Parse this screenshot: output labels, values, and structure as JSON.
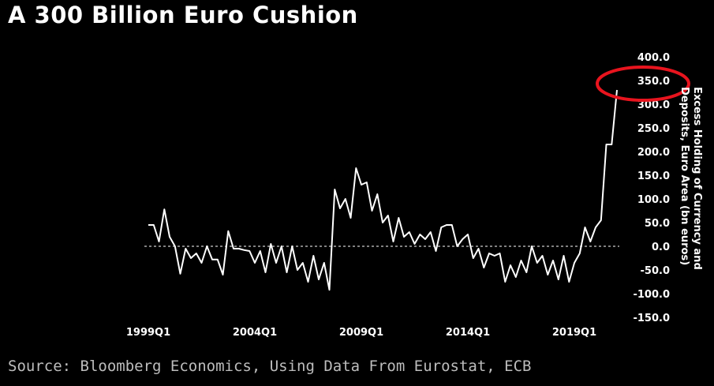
{
  "title": "A 300 Billion Euro Cushion",
  "source": "Source: Bloomberg Economics, Using Data From Eurostat, ECB",
  "colors": {
    "background": "#000000",
    "line": "#ffffff",
    "highlight": "#e8141e",
    "zero_line": "#ffffff"
  },
  "chart_data": {
    "type": "line",
    "title": "A 300 Billion Euro Cushion",
    "ylabel_lines": [
      "Excess Holding of Currency and",
      "Deposits, Euro Area (bn euros)"
    ],
    "ylim": [
      -150,
      400
    ],
    "yticks": [
      400.0,
      350.0,
      300.0,
      250.0,
      200.0,
      150.0,
      100.0,
      50.0,
      0.0,
      -50.0,
      -100.0,
      -150.0
    ],
    "ytick_labels": [
      "400.0",
      "350.0",
      "300.0",
      "250.0",
      "200.0",
      "150.0",
      "100.0",
      "50.0",
      "0.0",
      "-50.0",
      "-100.0",
      "-150.0"
    ],
    "xticks": [
      "1999Q1",
      "2004Q1",
      "2009Q1",
      "2014Q1",
      "2019Q1"
    ],
    "x_start": "1999Q1",
    "annotation": {
      "type": "circle",
      "around_tick": "350.0",
      "color": "#e8141e"
    },
    "series": [
      {
        "values": [
          45,
          45,
          10,
          78,
          20,
          0,
          -58,
          -5,
          -25,
          -15,
          -35,
          0,
          -28,
          -28,
          -60,
          32,
          -5,
          -5,
          -8,
          -10,
          -35,
          -10,
          -55,
          5,
          -35,
          0,
          -55,
          0,
          -50,
          -35,
          -75,
          -20,
          -70,
          -35,
          -92,
          120,
          80,
          100,
          60,
          165,
          130,
          135,
          75,
          110,
          50,
          65,
          10,
          60,
          20,
          30,
          5,
          25,
          15,
          30,
          -10,
          40,
          45,
          45,
          0,
          15,
          25,
          -25,
          -5,
          -45,
          -15,
          -20,
          -15,
          -75,
          -40,
          -65,
          -30,
          -55,
          0,
          -35,
          -20,
          -60,
          -30,
          -70,
          -20,
          -75,
          -35,
          -15,
          40,
          10,
          40,
          55,
          215,
          215,
          330
        ]
      }
    ]
  }
}
